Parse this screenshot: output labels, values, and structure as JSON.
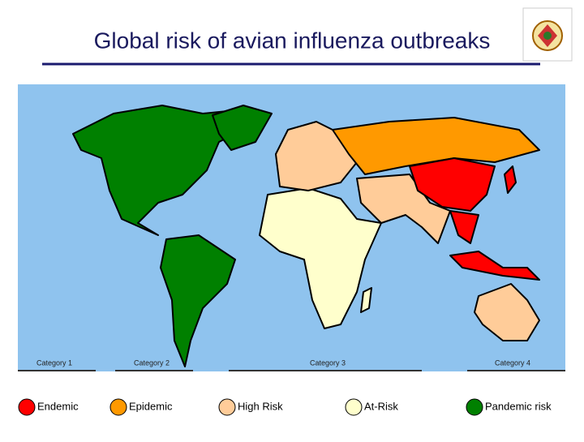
{
  "header": {
    "title": "Global risk of avian influenza outbreaks"
  },
  "map": {
    "category_labels": [
      "Category 1",
      "Category 2",
      "Category 3",
      "Category 4"
    ]
  },
  "legend": [
    {
      "label": "Endemic",
      "color": "#ff0000"
    },
    {
      "label": "Epidemic",
      "color": "#ff9900"
    },
    {
      "label": "High Risk",
      "color": "#ffcc99"
    },
    {
      "label": "At-Risk",
      "color": "#ffffcc"
    },
    {
      "label": "Pandemic risk",
      "color": "#008000"
    }
  ]
}
